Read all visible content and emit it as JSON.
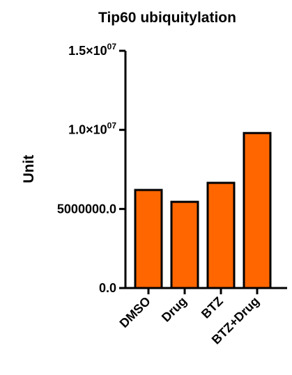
{
  "colors": {
    "bar_fill": "#ff6600",
    "bar_stroke": "#000000",
    "axis": "#000000",
    "background": "#ffffff"
  },
  "chart_data": {
    "type": "bar",
    "title": "Tip60 ubiquitylation",
    "xlabel": "",
    "ylabel": "Unit",
    "categories": [
      "DMSO",
      "Drug",
      "BTZ",
      "BTZ+Drug"
    ],
    "values": [
      6200000,
      5450000,
      6650000,
      9800000
    ],
    "ylim": [
      0,
      15000000
    ],
    "yticks": [
      {
        "value": 0,
        "base": "0.0",
        "exp": ""
      },
      {
        "value": 5000000,
        "base": "5000000.0",
        "exp": ""
      },
      {
        "value": 10000000,
        "base": "1.0×10",
        "exp": "07"
      },
      {
        "value": 15000000,
        "base": "1.5×10",
        "exp": "07"
      }
    ],
    "grid": false,
    "legend": "none"
  }
}
